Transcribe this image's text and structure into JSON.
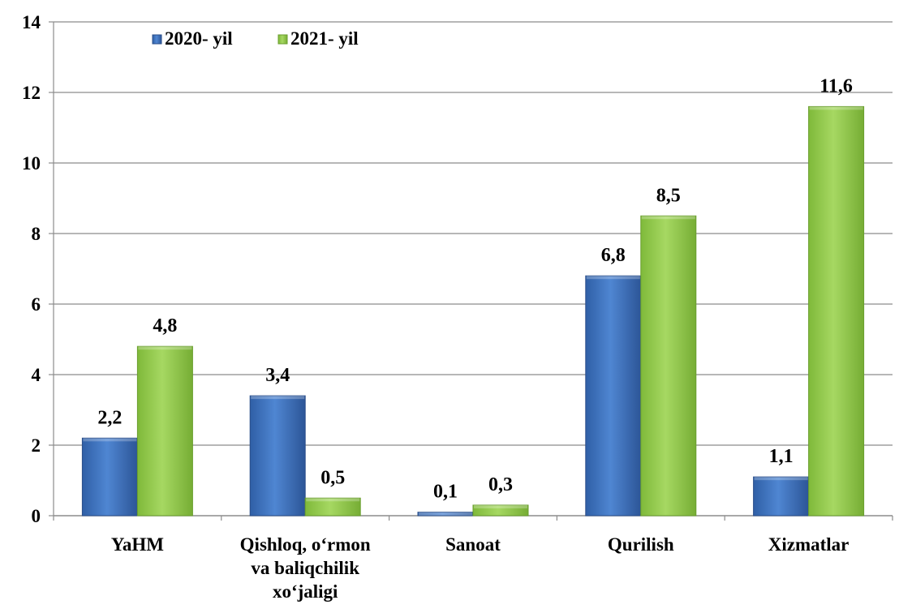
{
  "chart_data": {
    "type": "bar",
    "categories": [
      [
        "YaHM"
      ],
      [
        "Qishloq, o‘rmon",
        "va baliqchilik",
        "xo‘jaligi"
      ],
      [
        "Sanoat"
      ],
      [
        "Qurilish"
      ],
      [
        "Xizmatlar"
      ]
    ],
    "series": [
      {
        "name": "2020- yil",
        "values": [
          2.2,
          3.4,
          0.1,
          6.8,
          1.1
        ],
        "labels": [
          "2,2",
          "3,4",
          "0,1",
          "6,8",
          "1,1"
        ],
        "color": "#3f6fb8"
      },
      {
        "name": "2021- yil",
        "values": [
          4.8,
          0.5,
          0.3,
          8.5,
          11.6
        ],
        "labels": [
          "4,8",
          "0,5",
          "0,3",
          "8,5",
          "11,6"
        ],
        "color": "#92c94a"
      }
    ],
    "yticks": [
      "0",
      "2",
      "4",
      "6",
      "8",
      "10",
      "12",
      "14"
    ],
    "ylim": [
      0,
      14
    ],
    "grid": true,
    "legend_position": "top-left"
  }
}
